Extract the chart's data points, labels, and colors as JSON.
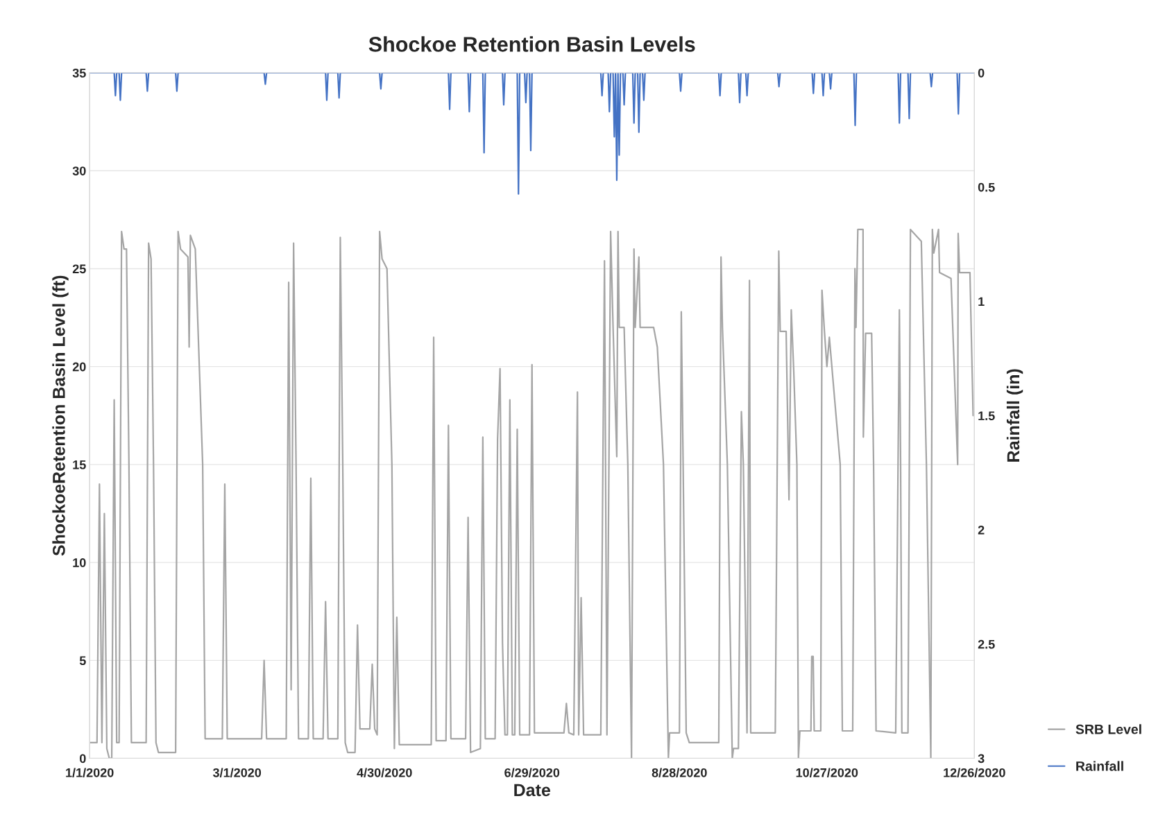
{
  "chart_data": {
    "type": "line",
    "title": "Shockoe Retention Basin Levels",
    "xlabel": "Date",
    "ylabel": "ShockoeRetention Basin Level (ft)",
    "y2label": "Rainfall (in)",
    "xlim": [
      "2020-01-01",
      "2020-12-26"
    ],
    "xticks": [
      {
        "value": "2020-01-01",
        "label": "1/1/2020"
      },
      {
        "value": "2020-03-01",
        "label": "3/1/2020"
      },
      {
        "value": "2020-04-30",
        "label": "4/30/2020"
      },
      {
        "value": "2020-06-29",
        "label": "6/29/2020"
      },
      {
        "value": "2020-08-28",
        "label": "8/28/2020"
      },
      {
        "value": "2020-10-27",
        "label": "10/27/2020"
      },
      {
        "value": "2020-12-26",
        "label": "12/26/2020"
      }
    ],
    "ylim": [
      0,
      35
    ],
    "yticks": [
      0,
      5,
      10,
      15,
      20,
      25,
      30,
      35
    ],
    "y2lim": [
      3,
      0
    ],
    "y2ticks": [
      0,
      0.5,
      1,
      1.5,
      2,
      2.5,
      3
    ],
    "grid": "y",
    "legend": "bottom right",
    "marker": "none",
    "line_style": "solid",
    "series": [
      {
        "name": "SRB Level",
        "color": "#a5a5a5",
        "x": [
          "2020-01-01",
          "2020-01-04",
          "2020-01-05",
          "2020-01-06",
          "2020-01-07",
          "2020-01-08",
          "2020-01-09",
          "2020-01-10",
          "2020-01-11",
          "2020-01-12",
          "2020-01-13",
          "2020-01-14",
          "2020-01-15",
          "2020-01-16",
          "2020-01-17",
          "2020-01-18",
          "2020-01-24",
          "2020-01-25",
          "2020-01-26",
          "2020-01-27",
          "2020-01-28",
          "2020-01-29",
          "2020-02-05",
          "2020-02-06",
          "2020-02-07",
          "2020-02-10",
          "2020-02-10T12:00",
          "2020-02-11",
          "2020-02-13",
          "2020-02-16",
          "2020-02-17",
          "2020-02-24",
          "2020-02-25",
          "2020-02-26",
          "2020-03-11",
          "2020-03-12",
          "2020-03-13",
          "2020-03-21",
          "2020-03-22",
          "2020-03-23",
          "2020-03-24",
          "2020-03-25",
          "2020-03-26",
          "2020-03-30",
          "2020-03-31",
          "2020-04-01",
          "2020-04-05",
          "2020-04-06",
          "2020-04-07",
          "2020-04-11",
          "2020-04-12",
          "2020-04-13",
          "2020-04-14",
          "2020-04-15",
          "2020-04-18",
          "2020-04-19",
          "2020-04-20",
          "2020-04-24",
          "2020-04-25",
          "2020-04-26",
          "2020-04-27",
          "2020-04-28",
          "2020-04-29",
          "2020-05-01",
          "2020-05-03",
          "2020-05-04",
          "2020-05-05",
          "2020-05-06",
          "2020-05-19",
          "2020-05-20",
          "2020-05-21",
          "2020-05-25",
          "2020-05-26",
          "2020-05-27",
          "2020-06-02",
          "2020-06-03",
          "2020-06-04",
          "2020-06-08",
          "2020-06-09",
          "2020-06-10",
          "2020-06-14",
          "2020-06-15",
          "2020-06-16",
          "2020-06-17",
          "2020-06-18",
          "2020-06-19",
          "2020-06-20",
          "2020-06-21",
          "2020-06-22",
          "2020-06-23",
          "2020-06-24",
          "2020-06-28",
          "2020-06-29",
          "2020-06-30",
          "2020-07-12",
          "2020-07-13",
          "2020-07-14",
          "2020-07-16",
          "2020-07-17T12:00",
          "2020-07-18",
          "2020-07-19",
          "2020-07-20",
          "2020-07-27",
          "2020-07-28T12:00",
          "2020-07-29T12:00",
          "2020-07-31",
          "2020-08-01",
          "2020-08-02T12:00",
          "2020-08-03",
          "2020-08-03T12:00",
          "2020-08-05T12:00",
          "2020-08-07",
          "2020-08-08T12:00",
          "2020-08-09T12:00",
          "2020-08-10",
          "2020-08-11T12:00",
          "2020-08-12",
          "2020-08-17T12:00",
          "2020-08-19",
          "2020-08-21T12:00",
          "2020-08-23T12:00",
          "2020-08-24",
          "2020-08-28",
          "2020-08-28T18:00",
          "2020-08-29T12:00",
          "2020-08-30T18:00",
          "2020-09-01",
          "2020-09-13",
          "2020-09-13T22:00",
          "2020-09-14T12:00",
          "2020-09-16T12:00",
          "2020-09-18T12:00",
          "2020-09-19",
          "2020-09-21",
          "2020-09-22T05:00",
          "2020-09-23",
          "2020-09-24T12:00",
          "2020-09-25T12:00",
          "2020-09-26",
          "2020-10-06",
          "2020-10-07T10:00",
          "2020-10-08",
          "2020-10-10T10:00",
          "2020-10-11T14:00",
          "2020-10-12T12:00",
          "2020-10-13T12:00",
          "2020-10-14T19:00",
          "2020-10-15T10:00",
          "2020-10-16",
          "2020-10-20T12:00",
          "2020-10-20T20:00",
          "2020-10-21T10:00",
          "2020-10-21T20:00",
          "2020-10-24T12:00",
          "2020-10-25",
          "2020-10-26",
          "2020-10-27",
          "2020-10-28",
          "2020-11-01T10:00",
          "2020-11-02T07:00",
          "2020-11-06T12:00",
          "2020-11-07T10:00",
          "2020-11-07T20:00",
          "2020-11-08T14:00",
          "2020-11-10T17:00",
          "2020-11-10T20:00",
          "2020-11-11T18:00",
          "2020-11-14T05:00",
          "2020-11-15",
          "2020-11-16",
          "2020-11-24",
          "2020-11-25T12:00",
          "2020-11-26",
          "2020-11-26T12:00",
          "2020-11-29",
          "2020-11-30",
          "2020-12-04T10:00",
          "2020-12-06T12:00",
          "2020-12-08T07:00",
          "2020-12-08T22:00",
          "2020-12-09T12:00",
          "2020-12-11T10:00",
          "2020-12-11T20:00",
          "2020-12-16T12:00",
          "2020-12-19T05:00",
          "2020-12-19T10:00",
          "2020-12-20",
          "2020-12-24T05:00",
          "2020-12-25T12:00"
        ],
        "values": [
          0.8,
          0.8,
          14,
          0.8,
          12.5,
          0.5,
          0,
          0,
          18.3,
          0.8,
          0.8,
          26.9,
          26,
          26,
          15,
          0.8,
          0.8,
          26.3,
          25.5,
          15,
          0.8,
          0.3,
          0.3,
          26.9,
          26,
          25.6,
          21,
          26.7,
          26,
          15,
          1,
          1,
          14,
          1,
          1,
          5,
          1,
          1,
          24.3,
          3.5,
          26.3,
          15,
          1,
          1,
          14.3,
          1,
          1,
          8,
          1,
          1,
          26.6,
          15,
          0.8,
          0.3,
          0.3,
          6.8,
          1.5,
          1.5,
          4.8,
          1.5,
          1.2,
          26.9,
          25.5,
          25,
          15,
          0.5,
          7.2,
          0.7,
          0.7,
          21.5,
          0.9,
          0.9,
          17,
          1,
          1,
          12.3,
          0.3,
          0.5,
          16.4,
          1,
          1,
          16.3,
          19.9,
          5.9,
          1.2,
          1.2,
          18.3,
          1.2,
          1.2,
          16.8,
          1.2,
          1.2,
          20.1,
          1.3,
          1.3,
          2.8,
          1.3,
          1.2,
          18.7,
          1.2,
          8.2,
          1.2,
          1.2,
          25.4,
          1.2,
          26.9,
          22,
          15.4,
          26.9,
          22,
          22,
          15,
          0,
          26,
          22,
          25.6,
          22,
          22,
          21,
          15,
          0,
          1.3,
          1.3,
          22.8,
          15,
          1.3,
          0.8,
          0.8,
          25.6,
          22,
          15,
          0,
          0.5,
          0.5,
          17.7,
          15,
          1.3,
          24.4,
          1.3,
          1.3,
          25.9,
          21.8,
          21.8,
          13.2,
          22.9,
          19.8,
          15,
          0,
          1.4,
          1.4,
          5.2,
          5.2,
          1.4,
          1.4,
          23.9,
          21.8,
          20,
          21.5,
          15,
          1.4,
          1.4,
          25,
          22,
          27,
          27,
          16.4,
          21.7,
          21.7,
          15,
          1.4,
          1.3,
          22.9,
          15,
          1.3,
          1.3,
          27,
          26.4,
          15,
          0,
          27,
          25.8,
          27,
          24.8,
          24.5,
          15,
          26.8,
          24.8,
          24.8,
          17.5
        ]
      },
      {
        "name": "Rainfall",
        "color": "#4472c4",
        "axis": "y2",
        "x": [
          "2020-01-01",
          "2020-01-11",
          "2020-01-11T12:00",
          "2020-01-12",
          "2020-01-13",
          "2020-01-13T12:00",
          "2020-01-14",
          "2020-01-24",
          "2020-01-24T12:00",
          "2020-01-25",
          "2020-02-05",
          "2020-02-05T12:00",
          "2020-02-06",
          "2020-03-12",
          "2020-03-12T12:00",
          "2020-03-13",
          "2020-04-06",
          "2020-04-06T12:00",
          "2020-04-07",
          "2020-04-11",
          "2020-04-11T12:00",
          "2020-04-12",
          "2020-04-28",
          "2020-04-28T12:00",
          "2020-04-29",
          "2020-05-26",
          "2020-05-26T12:00",
          "2020-05-27",
          "2020-06-03",
          "2020-06-03T12:00",
          "2020-06-04",
          "2020-06-09",
          "2020-06-09T12:00",
          "2020-06-10",
          "2020-06-17",
          "2020-06-17T12:00",
          "2020-06-18",
          "2020-06-23",
          "2020-06-23T12:00",
          "2020-06-24",
          "2020-06-26",
          "2020-06-26T12:00",
          "2020-06-27",
          "2020-06-28",
          "2020-06-28T12:00",
          "2020-06-29",
          "2020-07-27",
          "2020-07-27T12:00",
          "2020-07-28",
          "2020-07-30",
          "2020-07-30T12:00",
          "2020-07-31",
          "2020-08-01",
          "2020-08-01T12:00",
          "2020-08-02",
          "2020-08-02T12:00",
          "2020-08-03",
          "2020-08-03T12:00",
          "2020-08-04",
          "2020-08-05",
          "2020-08-05T12:00",
          "2020-08-06",
          "2020-08-09",
          "2020-08-09T12:00",
          "2020-08-10",
          "2020-08-11",
          "2020-08-11T12:00",
          "2020-08-12",
          "2020-08-13",
          "2020-08-13T12:00",
          "2020-08-14",
          "2020-08-28",
          "2020-08-28T12:00",
          "2020-08-29",
          "2020-09-13",
          "2020-09-13T12:00",
          "2020-09-14",
          "2020-09-21",
          "2020-09-21T12:00",
          "2020-09-22",
          "2020-09-24",
          "2020-09-24T12:00",
          "2020-09-25",
          "2020-10-07",
          "2020-10-07T12:00",
          "2020-10-08",
          "2020-10-21",
          "2020-10-21T12:00",
          "2020-10-22",
          "2020-10-25",
          "2020-10-25T12:00",
          "2020-10-26",
          "2020-10-28",
          "2020-10-28T12:00",
          "2020-10-29",
          "2020-11-07",
          "2020-11-07T12:00",
          "2020-11-08",
          "2020-11-25",
          "2020-11-25T12:00",
          "2020-11-26",
          "2020-11-29",
          "2020-11-29T12:00",
          "2020-11-30",
          "2020-12-08",
          "2020-12-08T12:00",
          "2020-12-09",
          "2020-12-19",
          "2020-12-19T12:00",
          "2020-12-20",
          "2020-12-26"
        ],
        "values": [
          0,
          0,
          0.1,
          0,
          0,
          0.12,
          0,
          0,
          0.08,
          0,
          0,
          0.08,
          0,
          0,
          0.05,
          0,
          0,
          0.12,
          0,
          0,
          0.11,
          0,
          0,
          0.07,
          0,
          0,
          0.16,
          0,
          0,
          0.17,
          0,
          0,
          0.35,
          0,
          0,
          0.14,
          0,
          0,
          0.53,
          0,
          0,
          0.13,
          0,
          0,
          0.34,
          0,
          0,
          0.1,
          0,
          0,
          0.17,
          0,
          0,
          0.28,
          0,
          0.47,
          0,
          0.36,
          0,
          0,
          0.14,
          0,
          0,
          0.22,
          0,
          0,
          0.26,
          0,
          0,
          0.12,
          0,
          0,
          0.08,
          0,
          0,
          0.1,
          0,
          0,
          0.13,
          0,
          0,
          0.1,
          0,
          0,
          0.06,
          0,
          0,
          0.09,
          0,
          0,
          0.1,
          0,
          0,
          0.07,
          0,
          0,
          0.23,
          0,
          0,
          0.22,
          0,
          0,
          0.2,
          0,
          0,
          0.06,
          0,
          0,
          0.18,
          0,
          0
        ]
      }
    ]
  }
}
